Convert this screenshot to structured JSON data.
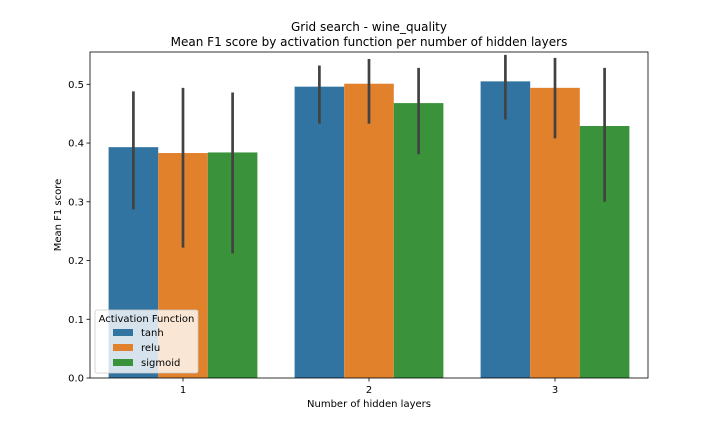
{
  "chart_data": {
    "type": "bar",
    "title": "Grid search - wine_quality",
    "subtitle": "Mean F1 score by activation function per number of hidden layers",
    "xlabel": "Number of hidden layers",
    "ylabel": "Mean F1 score",
    "categories": [
      "1",
      "2",
      "3"
    ],
    "ylim": [
      0,
      0.555
    ],
    "yticks": [
      0.0,
      0.1,
      0.2,
      0.3,
      0.4,
      0.5
    ],
    "ytick_labels": [
      "0.0",
      "0.1",
      "0.2",
      "0.3",
      "0.4",
      "0.5"
    ],
    "grid": false,
    "legend": {
      "title": "Activation Function",
      "placement": "lower-left"
    },
    "series": [
      {
        "name": "tanh",
        "color": "#3274a1",
        "values": [
          0.393,
          0.496,
          0.505
        ],
        "ci_low": [
          0.287,
          0.433,
          0.44
        ],
        "ci_high": [
          0.488,
          0.532,
          0.55
        ]
      },
      {
        "name": "relu",
        "color": "#e1812c",
        "values": [
          0.383,
          0.501,
          0.494
        ],
        "ci_low": [
          0.222,
          0.433,
          0.408
        ],
        "ci_high": [
          0.494,
          0.543,
          0.545
        ]
      },
      {
        "name": "sigmoid",
        "color": "#3a923a",
        "values": [
          0.384,
          0.468,
          0.429
        ],
        "ci_low": [
          0.212,
          0.381,
          0.3
        ],
        "ci_high": [
          0.486,
          0.528,
          0.528
        ]
      }
    ]
  }
}
